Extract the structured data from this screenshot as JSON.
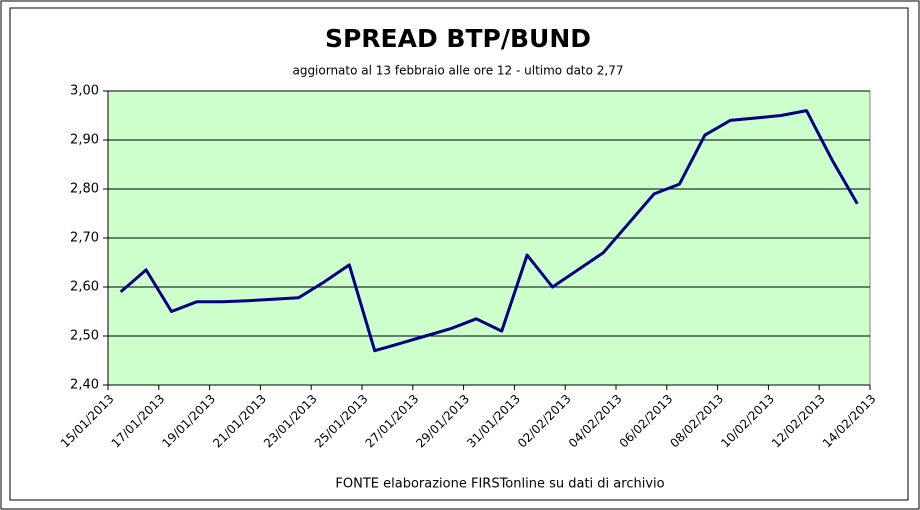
{
  "chart_data": {
    "type": "line",
    "title": "SPREAD  BTP/BUND",
    "subtitle": "aggiornato al 13 febbraio alle ore 12 - ultimo dato 2,77",
    "source": "FONTE elaborazione FIRSTonline su dati di archivio",
    "x": [
      "15/01/2013",
      "16/01/2013",
      "17/01/2013",
      "18/01/2013",
      "19/01/2013",
      "20/01/2013",
      "21/01/2013",
      "22/01/2013",
      "23/01/2013",
      "24/01/2013",
      "25/01/2013",
      "26/01/2013",
      "27/01/2013",
      "28/01/2013",
      "29/01/2013",
      "30/01/2013",
      "31/01/2013",
      "01/02/2013",
      "02/02/2013",
      "03/02/2013",
      "04/02/2013",
      "05/02/2013",
      "06/02/2013",
      "07/02/2013",
      "08/02/2013",
      "09/02/2013",
      "10/02/2013",
      "11/02/2013",
      "12/02/2013",
      "13/02/2013"
    ],
    "series": [
      {
        "name": "Spread BTP/Bund",
        "color": "#000080",
        "values": [
          2.59,
          2.635,
          2.55,
          2.57,
          2.57,
          2.572,
          2.575,
          2.578,
          2.61,
          2.645,
          2.47,
          2.485,
          2.5,
          2.515,
          2.535,
          2.51,
          2.665,
          2.6,
          2.635,
          2.67,
          2.73,
          2.79,
          2.81,
          2.91,
          2.94,
          2.945,
          2.95,
          2.96,
          2.86,
          2.77
        ]
      }
    ],
    "xticks": [
      "15/01/2013",
      "17/01/2013",
      "19/01/2013",
      "21/01/2013",
      "23/01/2013",
      "25/01/2013",
      "27/01/2013",
      "29/01/2013",
      "31/01/2013",
      "02/02/2013",
      "04/02/2013",
      "06/02/2013",
      "08/02/2013",
      "10/02/2013",
      "12/02/2013",
      "14/02/2013"
    ],
    "ylim": [
      2.4,
      3.0
    ],
    "yticks": [
      {
        "value": 2.4,
        "label": "2,40"
      },
      {
        "value": 2.5,
        "label": "2,50"
      },
      {
        "value": 2.6,
        "label": "2,60"
      },
      {
        "value": 2.7,
        "label": "2,70"
      },
      {
        "value": 2.8,
        "label": "2,80"
      },
      {
        "value": 2.9,
        "label": "2,90"
      },
      {
        "value": 3.0,
        "label": "3,00"
      }
    ],
    "grid": true,
    "plot_background": "#ccffcc"
  }
}
